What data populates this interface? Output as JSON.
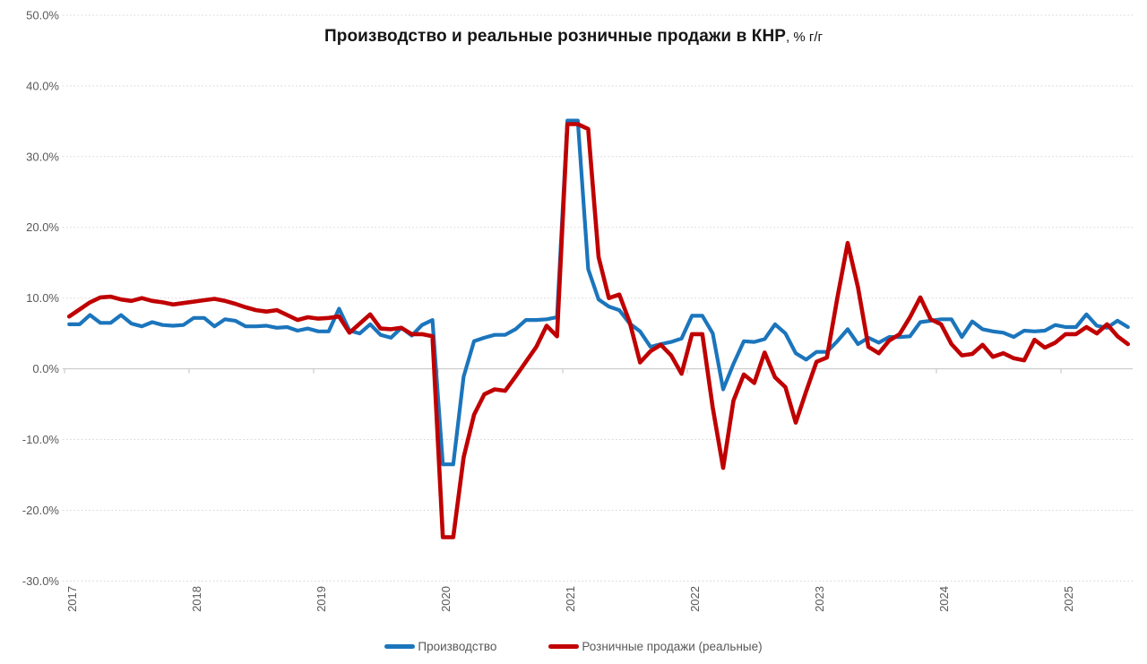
{
  "title": {
    "main": "Производство и реальные розничные продажи в КНР",
    "suffix": ", % г/г"
  },
  "colors": {
    "background": "#ffffff",
    "grid": "#d9d9d9",
    "axis": "#c3c3c3",
    "tick_label": "#595959",
    "title_text": "#151515",
    "legend_text": "#595959",
    "production_blue": "#1b75bc",
    "retail_red": "#c00000"
  },
  "chart_data": {
    "type": "line",
    "title": "Производство и реальные розничные продажи в КНР, % г/г",
    "frequency": "monthly",
    "x_start": "2017-01",
    "x_end": "2025-07",
    "x_tick_labels": [
      "2017",
      "2018",
      "2019",
      "2020",
      "2021",
      "2022",
      "2023",
      "2024",
      "2025"
    ],
    "y_ticks": [
      {
        "value": 50,
        "label": "50.0%"
      },
      {
        "value": 40,
        "label": "40.0%"
      },
      {
        "value": 30,
        "label": "30.0%"
      },
      {
        "value": 20,
        "label": "20.0%"
      },
      {
        "value": 10,
        "label": "10.0%"
      },
      {
        "value": 0,
        "label": "0.0%"
      },
      {
        "value": -10,
        "label": "-10.0%"
      },
      {
        "value": -20,
        "label": "-20.0%"
      },
      {
        "value": -30,
        "label": "-30.0%"
      }
    ],
    "ylim": [
      -30,
      50
    ],
    "grid": "horizontal-dotted",
    "legend_position": "bottom",
    "series": [
      {
        "name": "Производство",
        "color": "#1b75bc",
        "values": [
          6.3,
          6.3,
          7.6,
          6.5,
          6.5,
          7.6,
          6.4,
          6.0,
          6.6,
          6.2,
          6.1,
          6.2,
          7.2,
          7.2,
          6.0,
          7.0,
          6.8,
          6.0,
          6.0,
          6.1,
          5.8,
          5.9,
          5.4,
          5.7,
          5.3,
          5.3,
          8.5,
          5.4,
          5.0,
          6.3,
          4.8,
          4.4,
          5.8,
          4.7,
          6.2,
          6.9,
          -13.5,
          -13.5,
          -1.1,
          3.9,
          4.4,
          4.8,
          4.8,
          5.6,
          6.9,
          6.9,
          7.0,
          7.3,
          35.1,
          35.1,
          14.1,
          9.8,
          8.8,
          8.3,
          6.4,
          5.3,
          3.1,
          3.5,
          3.8,
          4.3,
          7.5,
          7.5,
          5.0,
          -2.9,
          0.7,
          3.9,
          3.8,
          4.2,
          6.3,
          5.0,
          2.2,
          1.3,
          2.4,
          2.4,
          3.9,
          5.6,
          3.5,
          4.4,
          3.7,
          4.5,
          4.5,
          4.6,
          6.6,
          6.8,
          7.0,
          7.0,
          4.5,
          6.7,
          5.6,
          5.3,
          5.1,
          4.5,
          5.4,
          5.3,
          5.4,
          6.2,
          5.9,
          5.9,
          7.7,
          6.1,
          5.8,
          6.8,
          5.9
        ]
      },
      {
        "name": "Розничные продажи (реальные)",
        "color": "#c00000",
        "values": [
          7.4,
          8.4,
          9.4,
          10.1,
          10.2,
          9.8,
          9.6,
          10.0,
          9.6,
          9.4,
          9.1,
          9.3,
          9.5,
          9.7,
          9.9,
          9.6,
          9.2,
          8.7,
          8.3,
          8.1,
          8.3,
          7.6,
          6.9,
          7.3,
          7.1,
          7.2,
          7.4,
          5.1,
          6.4,
          7.7,
          5.7,
          5.6,
          5.8,
          4.9,
          4.9,
          4.6,
          -23.8,
          -23.8,
          -12.5,
          -6.5,
          -3.6,
          -2.9,
          -3.1,
          -1.1,
          1.0,
          3.1,
          6.1,
          4.6,
          34.6,
          34.6,
          33.9,
          15.8,
          10.0,
          10.5,
          6.6,
          0.9,
          2.5,
          3.4,
          1.9,
          -0.7,
          4.9,
          4.9,
          -5.5,
          -14.0,
          -4.5,
          -0.8,
          -2.0,
          2.3,
          -1.2,
          -2.6,
          -7.6,
          -3.2,
          1.0,
          1.6,
          10.0,
          17.8,
          11.5,
          3.1,
          2.2,
          4.0,
          4.9,
          7.3,
          10.1,
          7.0,
          6.3,
          3.5,
          1.9,
          2.1,
          3.4,
          1.7,
          2.2,
          1.5,
          1.2,
          4.1,
          3.0,
          3.7,
          4.9,
          4.9,
          5.9,
          5.0,
          6.3,
          4.6,
          3.5
        ]
      }
    ]
  }
}
